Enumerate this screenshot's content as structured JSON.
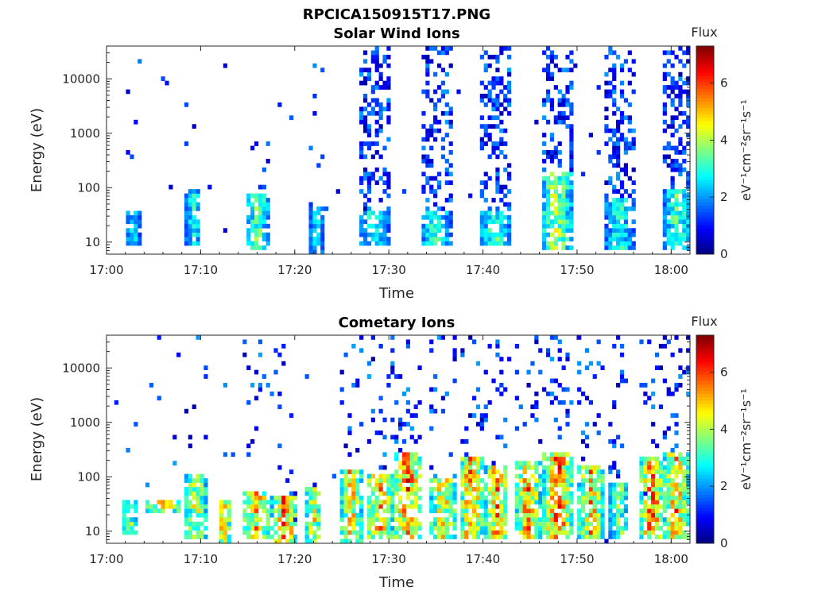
{
  "figure_title": "RPCICA150915T17.PNG",
  "chart_data": [
    {
      "type": "heatmap",
      "title": "Solar Wind Ions",
      "xlabel": "Time",
      "ylabel": "Energy (eV)",
      "xlim": [
        "17:00",
        "18:02"
      ],
      "ylim": [
        6,
        40000
      ],
      "yscale": "log",
      "xticks": [
        "17:00",
        "17:10",
        "17:20",
        "17:30",
        "17:40",
        "17:50",
        "18:00"
      ],
      "yticks": [
        "10",
        "100",
        "1000",
        "10000"
      ],
      "colorbar": {
        "title": "Flux",
        "label": "eV⁻¹cm⁻²sr⁻¹s⁻¹",
        "range": [
          0,
          7.3
        ],
        "ticks": [
          "0",
          "2",
          "4",
          "6"
        ],
        "colormap": "jet"
      },
      "bursts": [
        {
          "center_min": 2.8,
          "width_min": 1.6,
          "energy_low": 8,
          "energy_high": 40,
          "peak_flux": 3.2,
          "hi_energy_density": 0.02
        },
        {
          "center_min": 9.2,
          "width_min": 1.8,
          "energy_low": 8,
          "energy_high": 90,
          "peak_flux": 3.6,
          "hi_energy_density": 0.02
        },
        {
          "center_min": 16.0,
          "width_min": 2.6,
          "energy_low": 7,
          "energy_high": 80,
          "peak_flux": 4.2,
          "hi_energy_density": 0.05
        },
        {
          "center_min": 22.3,
          "width_min": 1.6,
          "energy_low": 6,
          "energy_high": 45,
          "peak_flux": 3.2,
          "hi_energy_density": 0.05
        },
        {
          "center_min": 28.5,
          "width_min": 3.0,
          "energy_low": 8,
          "energy_high": 40,
          "peak_flux": 3.8,
          "hi_energy_density": 0.35
        },
        {
          "center_min": 35.0,
          "width_min": 3.2,
          "energy_low": 8,
          "energy_high": 40,
          "peak_flux": 3.8,
          "hi_energy_density": 0.35
        },
        {
          "center_min": 41.3,
          "width_min": 3.2,
          "energy_low": 8,
          "energy_high": 40,
          "peak_flux": 4.0,
          "hi_energy_density": 0.35
        },
        {
          "center_min": 47.8,
          "width_min": 3.4,
          "energy_low": 7,
          "energy_high": 200,
          "peak_flux": 4.8,
          "hi_energy_density": 0.4
        },
        {
          "center_min": 54.5,
          "width_min": 3.2,
          "energy_low": 7,
          "energy_high": 60,
          "peak_flux": 3.6,
          "hi_energy_density": 0.35
        },
        {
          "center_min": 60.7,
          "width_min": 2.8,
          "energy_low": 7,
          "energy_high": 100,
          "peak_flux": 4.2,
          "hi_energy_density": 0.4
        }
      ]
    },
    {
      "type": "heatmap",
      "title": "Cometary Ions",
      "xlabel": "Time",
      "ylabel": "Energy (eV)",
      "xlim": [
        "17:00",
        "18:02"
      ],
      "ylim": [
        6,
        40000
      ],
      "yscale": "log",
      "xticks": [
        "17:00",
        "17:10",
        "17:20",
        "17:30",
        "17:40",
        "17:50",
        "18:00"
      ],
      "yticks": [
        "10",
        "100",
        "1000",
        "10000"
      ],
      "colorbar": {
        "title": "Flux",
        "label": "eV⁻¹cm⁻²sr⁻¹s⁻¹",
        "range": [
          0,
          7.3
        ],
        "ticks": [
          "0",
          "2",
          "4",
          "6"
        ],
        "colormap": "jet"
      },
      "bursts": [
        {
          "center_min": 2.5,
          "width_min": 2.0,
          "energy_low": 8,
          "energy_high": 40,
          "peak_flux": 4.5,
          "hi_energy_density": 0.01
        },
        {
          "center_min": 6.0,
          "width_min": 4.0,
          "energy_low": 20,
          "energy_high": 40,
          "peak_flux": 5.8,
          "hi_energy_density": 0.01
        },
        {
          "center_min": 9.5,
          "width_min": 2.5,
          "energy_low": 7,
          "energy_high": 120,
          "peak_flux": 5.2,
          "hi_energy_density": 0.02
        },
        {
          "center_min": 12.5,
          "width_min": 1.4,
          "energy_low": 6,
          "energy_high": 40,
          "peak_flux": 6.3,
          "hi_energy_density": 0.01
        },
        {
          "center_min": 16.0,
          "width_min": 3.2,
          "energy_low": 7,
          "energy_high": 50,
          "peak_flux": 6.0,
          "hi_energy_density": 0.05
        },
        {
          "center_min": 19.0,
          "width_min": 2.4,
          "energy_low": 6,
          "energy_high": 45,
          "peak_flux": 6.8,
          "hi_energy_density": 0.05
        },
        {
          "center_min": 22.0,
          "width_min": 1.8,
          "energy_low": 6,
          "energy_high": 60,
          "peak_flux": 5.5,
          "hi_energy_density": 0.05
        },
        {
          "center_min": 26.0,
          "width_min": 2.4,
          "energy_low": 6,
          "energy_high": 130,
          "peak_flux": 6.0,
          "hi_energy_density": 0.06
        },
        {
          "center_min": 29.0,
          "width_min": 3.0,
          "energy_low": 7,
          "energy_high": 120,
          "peak_flux": 6.2,
          "hi_energy_density": 0.1
        },
        {
          "center_min": 32.0,
          "width_min": 3.0,
          "energy_low": 7,
          "energy_high": 300,
          "peak_flux": 6.8,
          "hi_energy_density": 0.1
        },
        {
          "center_min": 35.8,
          "width_min": 3.0,
          "energy_low": 7,
          "energy_high": 100,
          "peak_flux": 5.8,
          "hi_energy_density": 0.1
        },
        {
          "center_min": 38.8,
          "width_min": 2.4,
          "energy_low": 7,
          "energy_high": 250,
          "peak_flux": 6.8,
          "hi_energy_density": 0.12
        },
        {
          "center_min": 41.5,
          "width_min": 2.4,
          "energy_low": 7,
          "energy_high": 150,
          "peak_flux": 6.6,
          "hi_energy_density": 0.12
        },
        {
          "center_min": 44.8,
          "width_min": 2.6,
          "energy_low": 7,
          "energy_high": 200,
          "peak_flux": 6.4,
          "hi_energy_density": 0.12
        },
        {
          "center_min": 48.0,
          "width_min": 3.0,
          "energy_low": 7,
          "energy_high": 300,
          "peak_flux": 6.9,
          "hi_energy_density": 0.12
        },
        {
          "center_min": 51.5,
          "width_min": 2.6,
          "energy_low": 7,
          "energy_high": 150,
          "peak_flux": 6.2,
          "hi_energy_density": 0.12
        },
        {
          "center_min": 54.5,
          "width_min": 2.0,
          "energy_low": 7,
          "energy_high": 80,
          "peak_flux": 4.5,
          "hi_energy_density": 0.1
        },
        {
          "center_min": 58.0,
          "width_min": 2.6,
          "energy_low": 7,
          "energy_high": 250,
          "peak_flux": 6.8,
          "hi_energy_density": 0.12
        },
        {
          "center_min": 60.5,
          "width_min": 2.6,
          "energy_low": 7,
          "energy_high": 300,
          "peak_flux": 6.4,
          "hi_energy_density": 0.15
        }
      ]
    }
  ]
}
